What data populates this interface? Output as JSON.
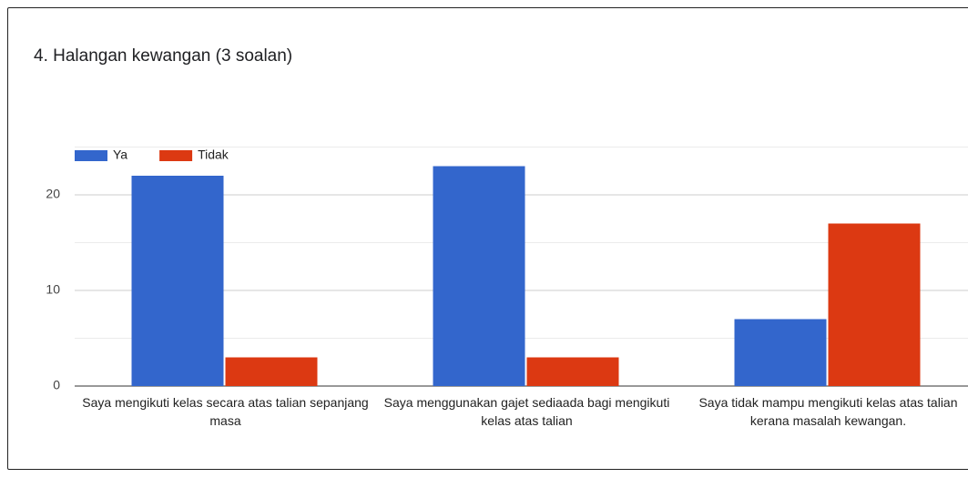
{
  "chart_data": {
    "type": "bar",
    "title": "4. Halangan kewangan (3 soalan)",
    "categories": [
      "Saya mengikuti kelas secara atas talian sepanjang masa",
      "Saya menggunakan gajet sediaada bagi mengikuti kelas atas talian",
      "Saya tidak mampu mengikuti kelas atas talian kerana masalah kewangan."
    ],
    "series": [
      {
        "name": "Ya",
        "color": "#3366cc",
        "values": [
          22,
          23,
          7
        ]
      },
      {
        "name": "Tidak",
        "color": "#dc3912",
        "values": [
          3,
          3,
          17
        ]
      }
    ],
    "ylim": [
      0,
      25
    ],
    "yticks": [
      0,
      10,
      20
    ],
    "minor_yticks": [
      5,
      15,
      25
    ],
    "grid": true,
    "legend": "top-left"
  }
}
